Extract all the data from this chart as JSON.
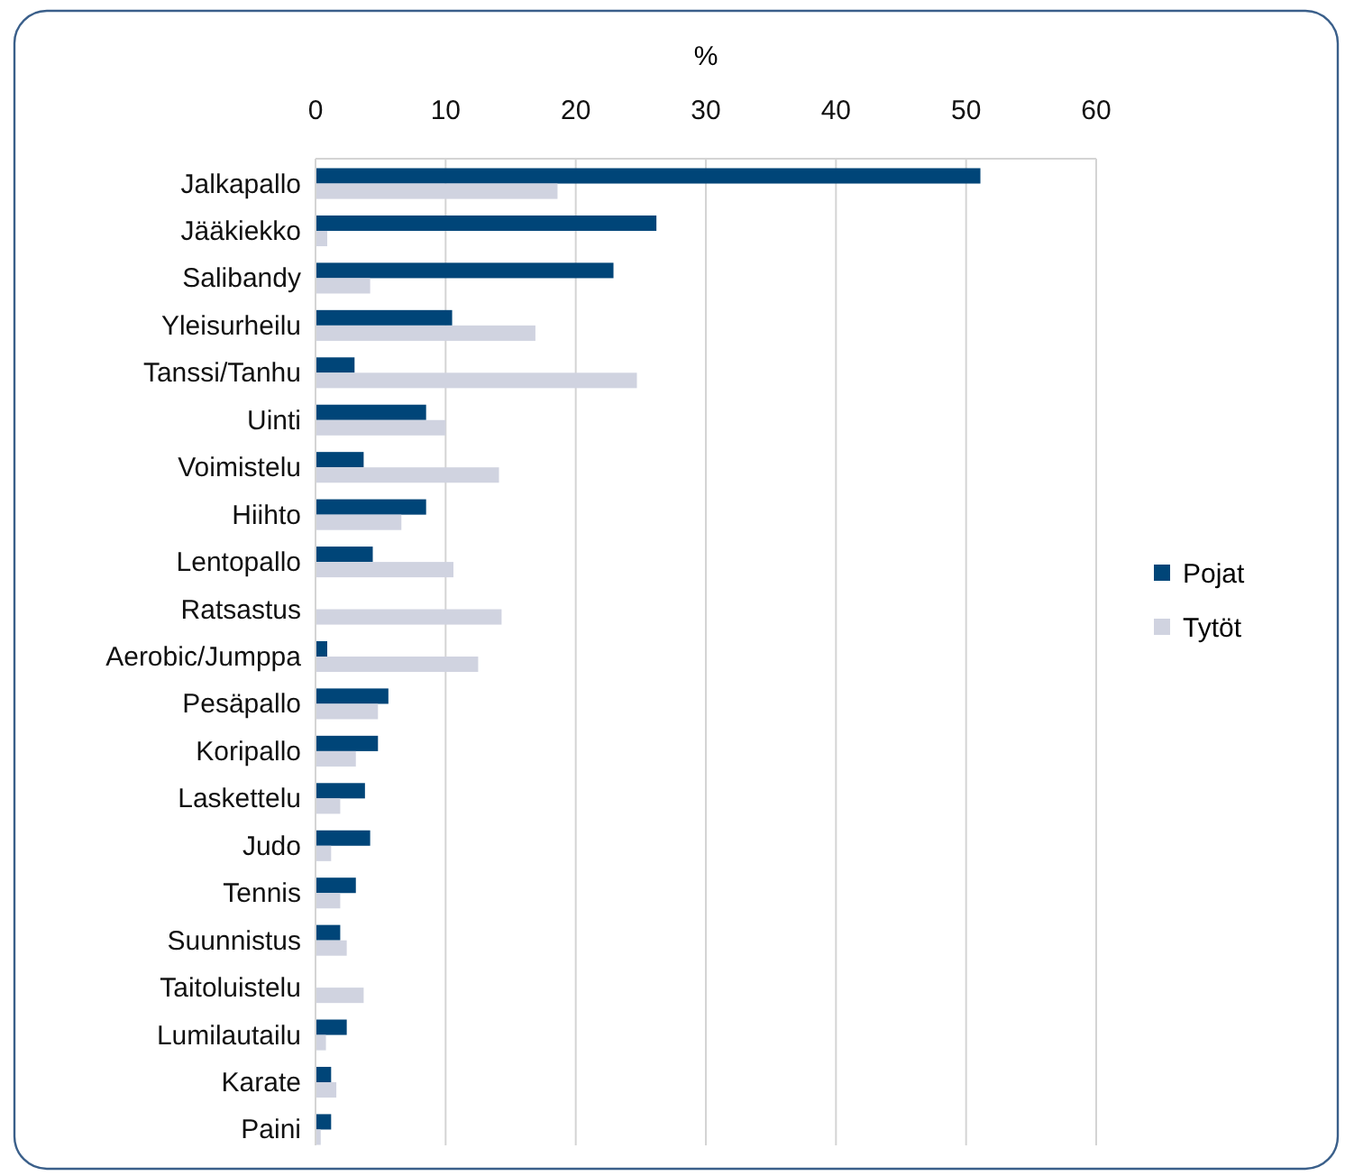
{
  "chart_data": {
    "type": "bar",
    "orientation": "horizontal",
    "xlabel": "%",
    "categories": [
      "Jalkapallo",
      "Jääkiekko",
      "Salibandy",
      "Yleisurheilu",
      "Tanssi/Tanhu",
      "Uinti",
      "Voimistelu",
      "Hiihto",
      "Lentopallo",
      "Ratsastus",
      "Aerobic/Jumppa",
      "Pesäpallo",
      "Koripallo",
      "Laskettelu",
      "Judo",
      "Tennis",
      "Suunnistus",
      "Taitoluistelu",
      "Lumilautailu",
      "Karate",
      "Paini"
    ],
    "series": [
      {
        "name": "Pojat",
        "color": "#004578",
        "values": [
          51.1,
          26.2,
          22.9,
          10.5,
          3.0,
          8.5,
          3.7,
          8.5,
          4.4,
          0,
          0.9,
          5.6,
          4.8,
          3.8,
          4.2,
          3.1,
          1.9,
          0,
          2.4,
          1.2,
          1.2
        ]
      },
      {
        "name": "Tytöt",
        "color": "#d0d3e0",
        "values": [
          18.6,
          0.9,
          4.2,
          16.9,
          24.7,
          10.0,
          14.1,
          6.6,
          10.6,
          14.3,
          12.5,
          4.8,
          3.1,
          1.9,
          1.2,
          1.9,
          2.4,
          3.7,
          0.8,
          1.6,
          0.4
        ]
      }
    ],
    "xlim": [
      0,
      60
    ],
    "xticks": [
      0,
      10,
      20,
      30,
      40,
      50,
      60
    ],
    "grid": "x",
    "legend": "right"
  }
}
